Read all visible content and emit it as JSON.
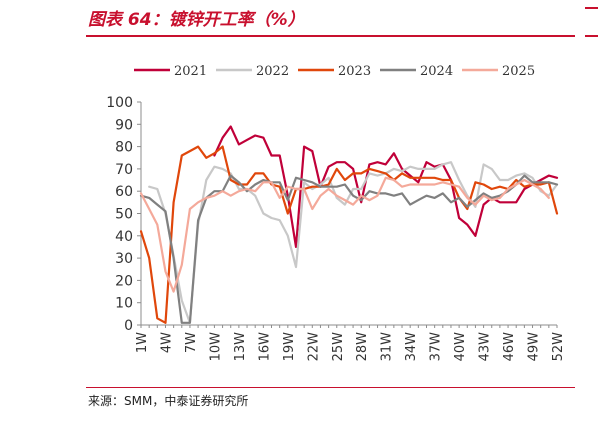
{
  "header": {
    "title": "图表 64：镀锌开工率（%）"
  },
  "footer": {
    "source": "来源：SMM，中泰证券研究所"
  },
  "colors": {
    "accent": "#c8102e",
    "series_2021": "#c00039",
    "series_2022": "#c8c8c8",
    "series_2023": "#e0470b",
    "series_2024": "#808080",
    "series_2025": "#f4a99a"
  },
  "chart_data": {
    "type": "line",
    "title": "",
    "xlabel": "",
    "ylabel": "",
    "ylim": [
      0,
      100
    ],
    "yticks": [
      0,
      10,
      20,
      30,
      40,
      50,
      60,
      70,
      80,
      90,
      100
    ],
    "xticks": [
      "1W",
      "4W",
      "7W",
      "10W",
      "13W",
      "16W",
      "19W",
      "22W",
      "25W",
      "28W",
      "31W",
      "34W",
      "37W",
      "40W",
      "43W",
      "46W",
      "49W",
      "52W"
    ],
    "x": [
      1,
      2,
      3,
      4,
      5,
      6,
      7,
      8,
      9,
      10,
      11,
      12,
      13,
      14,
      15,
      16,
      17,
      18,
      19,
      20,
      21,
      22,
      23,
      24,
      25,
      26,
      27,
      28,
      29,
      30,
      31,
      32,
      33,
      34,
      35,
      36,
      37,
      38,
      39,
      40,
      41,
      42,
      43,
      44,
      45,
      46,
      47,
      48,
      49,
      50,
      51,
      52
    ],
    "grid": false,
    "legend": "top",
    "series": [
      {
        "name": "2021",
        "color": "#c00039",
        "values": [
          null,
          null,
          null,
          null,
          null,
          null,
          null,
          null,
          null,
          76,
          84,
          89,
          81,
          83,
          85,
          84,
          76,
          76,
          58,
          35,
          80,
          78,
          62,
          71,
          73,
          73,
          70,
          55,
          72,
          73,
          72,
          77,
          70,
          67,
          64,
          73,
          71,
          72,
          65,
          48,
          45,
          40,
          54,
          57,
          55,
          55,
          55,
          61,
          63,
          65,
          67,
          66
        ]
      },
      {
        "name": "2022",
        "color": "#c8c8c8",
        "values": [
          null,
          62,
          61,
          50,
          31,
          11,
          1,
          45,
          65,
          71,
          70,
          68,
          61,
          61,
          58,
          50,
          48,
          47,
          40,
          26,
          64,
          61,
          63,
          66,
          57,
          54,
          61,
          61,
          68,
          67,
          68,
          70,
          69,
          71,
          70,
          70,
          70,
          72,
          73,
          65,
          58,
          53,
          72,
          70,
          65,
          65,
          67,
          68,
          66,
          60,
          58,
          63
        ]
      },
      {
        "name": "2023",
        "color": "#e0470b",
        "values": [
          42,
          30,
          3,
          1,
          55,
          76,
          78,
          80,
          75,
          77,
          80,
          65,
          63,
          63,
          68,
          68,
          63,
          62,
          50,
          61,
          61,
          62,
          62,
          63,
          70,
          65,
          68,
          68,
          70,
          69,
          68,
          65,
          68,
          66,
          66,
          66,
          66,
          65,
          65,
          57,
          52,
          64,
          63,
          61,
          62,
          61,
          65,
          62,
          63,
          63,
          64,
          50
        ]
      },
      {
        "name": "2024",
        "color": "#808080",
        "values": [
          58,
          57,
          54,
          51,
          30,
          1,
          1,
          47,
          57,
          60,
          60,
          67,
          64,
          60,
          63,
          65,
          64,
          64,
          56,
          66,
          65,
          64,
          62,
          62,
          62,
          63,
          58,
          56,
          60,
          59,
          59,
          58,
          59,
          54,
          56,
          58,
          57,
          59,
          55,
          57,
          53,
          56,
          59,
          57,
          58,
          60,
          63,
          67,
          64,
          64,
          64,
          63
        ]
      },
      {
        "name": "2025",
        "color": "#f4a99a",
        "values": [
          59,
          52,
          45,
          24,
          15,
          27,
          52,
          55,
          57,
          58,
          60,
          58,
          60,
          61,
          60,
          64,
          64,
          57,
          62,
          61,
          61,
          52,
          58,
          61,
          58,
          56,
          54,
          58,
          56,
          58,
          66,
          65,
          62,
          63,
          63,
          63,
          63,
          64,
          63,
          62,
          57,
          54,
          58,
          56,
          57,
          61,
          63,
          65,
          63,
          61,
          57,
          null
        ]
      }
    ]
  }
}
